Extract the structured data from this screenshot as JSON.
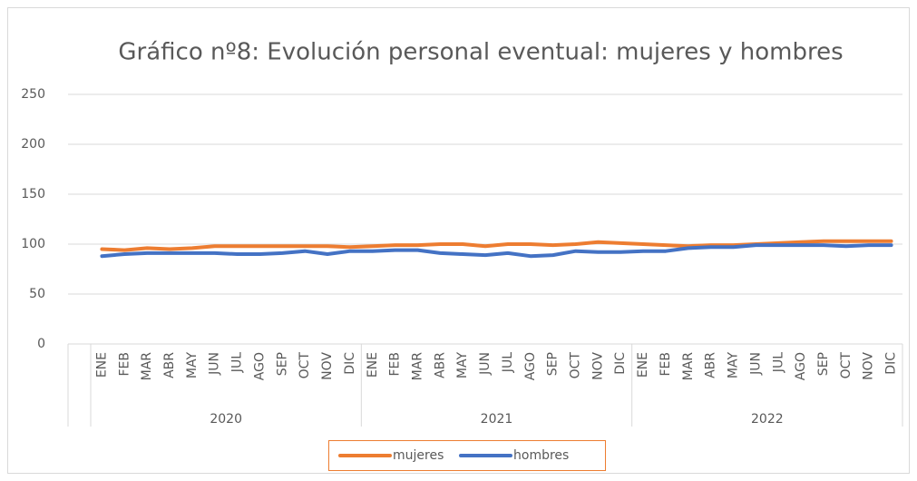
{
  "chart_data": {
    "type": "line",
    "title": "Gráfico nº8: Evolución personal eventual: mujeres y hombres",
    "categories": [
      "ENE",
      "FEB",
      "MAR",
      "ABR",
      "MAY",
      "JUN",
      "JUL",
      "AGO",
      "SEP",
      "OCT",
      "NOV",
      "DIC",
      "ENE",
      "FEB",
      "MAR",
      "ABR",
      "MAY",
      "JUN",
      "JUL",
      "AGO",
      "SEP",
      "OCT",
      "NOV",
      "DIC",
      "ENE",
      "FEB",
      "MAR",
      "ABR",
      "MAY",
      "JUN",
      "JUL",
      "AGO",
      "SEP",
      "OCT",
      "NOV",
      "DIC"
    ],
    "years": [
      "2020",
      "2021",
      "2022"
    ],
    "series": [
      {
        "name": "mujeres",
        "color": "#ed7d31",
        "values": [
          95,
          94,
          96,
          95,
          96,
          98,
          98,
          98,
          98,
          98,
          98,
          97,
          98,
          99,
          99,
          100,
          100,
          98,
          100,
          100,
          99,
          100,
          102,
          101,
          100,
          99,
          98,
          99,
          99,
          100,
          101,
          102,
          103,
          103,
          103,
          103
        ]
      },
      {
        "name": "hombres",
        "color": "#4472c4",
        "values": [
          88,
          90,
          91,
          91,
          91,
          91,
          90,
          90,
          91,
          93,
          90,
          93,
          93,
          94,
          94,
          91,
          90,
          89,
          91,
          88,
          89,
          93,
          92,
          92,
          93,
          93,
          96,
          97,
          97,
          99,
          99,
          99,
          99,
          98,
          99,
          99
        ]
      }
    ],
    "ylim": [
      0,
      250
    ],
    "yticks": [
      0,
      50,
      100,
      150,
      200,
      250
    ],
    "grid": true,
    "legend": "bottom"
  }
}
